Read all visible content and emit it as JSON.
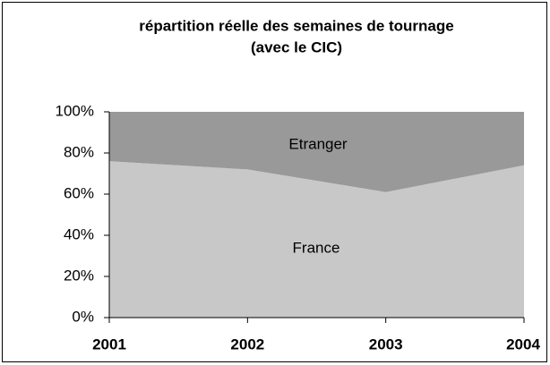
{
  "chart_data": {
    "type": "stacked_area",
    "title": [
      "répartition réelle des semaines de tournage",
      "(avec le CIC)"
    ],
    "categories": [
      "2001",
      "2002",
      "2003",
      "2004"
    ],
    "series": [
      {
        "name": "France",
        "color": "#c8c8c8",
        "values": [
          76,
          72,
          61,
          74
        ]
      },
      {
        "name": "Etranger",
        "color": "#999999",
        "values": [
          24,
          28,
          39,
          26
        ]
      }
    ],
    "ylim": [
      0,
      100
    ],
    "yticks": [
      {
        "value": 0,
        "label": "0%"
      },
      {
        "value": 20,
        "label": "20%"
      },
      {
        "value": 40,
        "label": "40%"
      },
      {
        "value": 60,
        "label": "60%"
      },
      {
        "value": 80,
        "label": "80%"
      },
      {
        "value": 100,
        "label": "100%"
      }
    ]
  }
}
